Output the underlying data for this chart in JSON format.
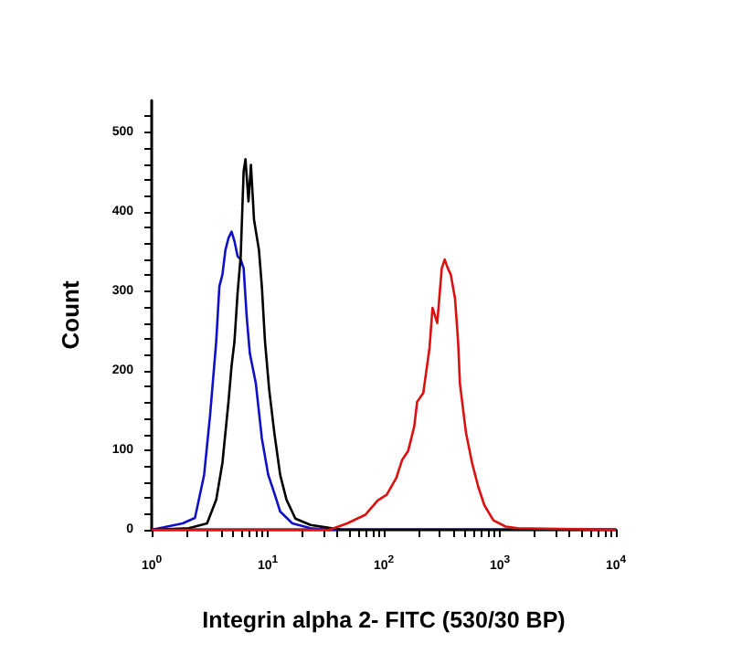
{
  "chart_data": {
    "type": "line",
    "xlabel": "Integrin alpha 2- FITC (530/30 BP)",
    "ylabel": "Count",
    "log": "x",
    "grid": false,
    "marker": "none",
    "line_style": "solid",
    "xlim": [
      1,
      10000
    ],
    "ylim": [
      0,
      540
    ],
    "xticks": [
      {
        "value": 1,
        "label": "10$^{0}$"
      },
      {
        "value": 2,
        "label": null
      },
      {
        "value": 3,
        "label": null
      },
      {
        "value": 4,
        "label": null
      },
      {
        "value": 5,
        "label": null
      },
      {
        "value": 6,
        "label": null
      },
      {
        "value": 7,
        "label": null
      },
      {
        "value": 8,
        "label": null
      },
      {
        "value": 9,
        "label": null
      },
      {
        "value": 10,
        "label": "10$^{1}$"
      },
      {
        "value": 20,
        "label": null
      },
      {
        "value": 30,
        "label": null
      },
      {
        "value": 40,
        "label": null
      },
      {
        "value": 50,
        "label": null
      },
      {
        "value": 60,
        "label": null
      },
      {
        "value": 70,
        "label": null
      },
      {
        "value": 80,
        "label": null
      },
      {
        "value": 90,
        "label": null
      },
      {
        "value": 100,
        "label": "10$^{2}$"
      },
      {
        "value": 200,
        "label": null
      },
      {
        "value": 300,
        "label": null
      },
      {
        "value": 400,
        "label": null
      },
      {
        "value": 500,
        "label": null
      },
      {
        "value": 600,
        "label": null
      },
      {
        "value": 700,
        "label": null
      },
      {
        "value": 800,
        "label": null
      },
      {
        "value": 900,
        "label": null
      },
      {
        "value": 1000,
        "label": "10$^{3}$"
      },
      {
        "value": 2000,
        "label": null
      },
      {
        "value": 3000,
        "label": null
      },
      {
        "value": 4000,
        "label": null
      },
      {
        "value": 5000,
        "label": null
      },
      {
        "value": 6000,
        "label": null
      },
      {
        "value": 7000,
        "label": null
      },
      {
        "value": 8000,
        "label": null
      },
      {
        "value": 9000,
        "label": null
      },
      {
        "value": 10000,
        "label": "10$^{4}$"
      }
    ],
    "yticks": [
      0,
      {
        "value": 20,
        "label": null
      },
      {
        "value": 40,
        "label": null
      },
      {
        "value": 60,
        "label": null
      },
      {
        "value": 80,
        "label": null
      },
      100,
      {
        "value": 120,
        "label": null
      },
      {
        "value": 140,
        "label": null
      },
      {
        "value": 160,
        "label": null
      },
      {
        "value": 180,
        "label": null
      },
      200,
      {
        "value": 220,
        "label": null
      },
      {
        "value": 240,
        "label": null
      },
      {
        "value": 260,
        "label": null
      },
      {
        "value": 280,
        "label": null
      },
      300,
      {
        "value": 320,
        "label": null
      },
      {
        "value": 340,
        "label": null
      },
      {
        "value": 360,
        "label": null
      },
      {
        "value": 380,
        "label": null
      },
      400,
      {
        "value": 420,
        "label": null
      },
      {
        "value": 440,
        "label": null
      },
      {
        "value": 460,
        "label": null
      },
      {
        "value": 480,
        "label": null
      },
      500,
      {
        "value": 520,
        "label": null
      }
    ],
    "series": [
      {
        "color": "#1010c8",
        "x": [
          1,
          1.85,
          2.36,
          2.83,
          3.19,
          3.6,
          3.83,
          4.07,
          4.32,
          4.59,
          4.88,
          5.17,
          5.5,
          5.85,
          6.2,
          6.59,
          7.01,
          7.9,
          8.9,
          10.1,
          11.4,
          12.8,
          16.3,
          23.4,
          33.8,
          10000
        ],
        "values": [
          0,
          8,
          15,
          69,
          145,
          237,
          306,
          321,
          352,
          367,
          375,
          363,
          344,
          340,
          329,
          268,
          222,
          184,
          115,
          69,
          46,
          23,
          8,
          2,
          0,
          0
        ]
      },
      {
        "color": "#000000",
        "x": [
          1,
          2.09,
          3.0,
          3.6,
          4.07,
          4.59,
          4.88,
          5.17,
          5.5,
          5.85,
          6.2,
          6.43,
          6.83,
          7.17,
          7.62,
          8.4,
          8.9,
          9.47,
          10.3,
          11.4,
          12.8,
          14.5,
          17.3,
          23.4,
          31.7,
          43,
          10000
        ],
        "values": [
          0,
          2,
          8,
          38,
          84,
          161,
          206,
          237,
          298,
          344,
          451,
          466,
          413,
          459,
          390,
          352,
          306,
          237,
          176,
          122,
          69,
          38,
          14,
          6,
          3,
          0,
          0
        ]
      },
      {
        "color": "#dd1010",
        "x": [
          1,
          34,
          48.4,
          69.6,
          88.7,
          106,
          128,
          144,
          162,
          183,
          194,
          219,
          248,
          263,
          289,
          316,
          335,
          356,
          378,
          411,
          437,
          453,
          511,
          577,
          652,
          735,
          880,
          1122,
          1427,
          10000
        ],
        "values": [
          0,
          0,
          8,
          19,
          37,
          44,
          65,
          88,
          99,
          130,
          161,
          172,
          229,
          279,
          260,
          329,
          340,
          329,
          321,
          291,
          237,
          184,
          122,
          84,
          54,
          31,
          12,
          4,
          2,
          0
        ]
      }
    ]
  }
}
